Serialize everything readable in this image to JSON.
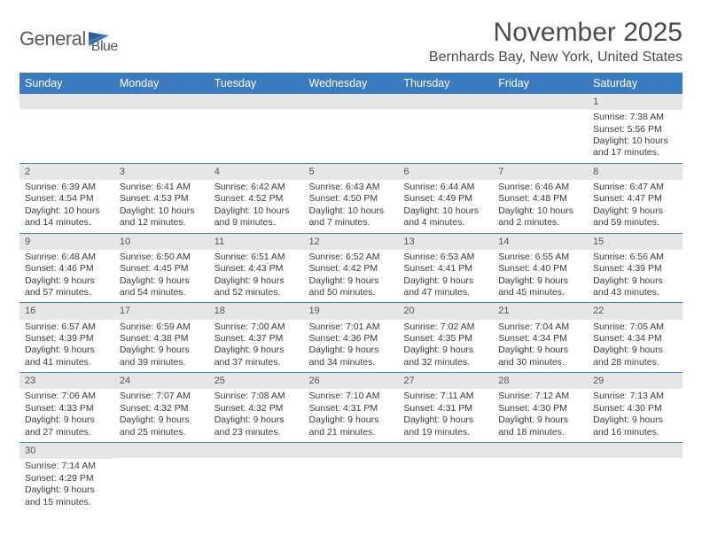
{
  "logo": {
    "text1": "General",
    "text2": "Blue",
    "flag_color": "#3b7bbf"
  },
  "title": "November 2025",
  "subtitle": "Bernhards Bay, New York, United States",
  "header_bg": "#3b7bbf",
  "header_fg": "#ffffff",
  "cell_border": "#3b7bbf",
  "daynum_bg": "#e6e6e6",
  "days": [
    "Sunday",
    "Monday",
    "Tuesday",
    "Wednesday",
    "Thursday",
    "Friday",
    "Saturday"
  ],
  "weeks": [
    [
      {
        "n": "",
        "sunrise": "",
        "sunset": "",
        "daylight": ""
      },
      {
        "n": "",
        "sunrise": "",
        "sunset": "",
        "daylight": ""
      },
      {
        "n": "",
        "sunrise": "",
        "sunset": "",
        "daylight": ""
      },
      {
        "n": "",
        "sunrise": "",
        "sunset": "",
        "daylight": ""
      },
      {
        "n": "",
        "sunrise": "",
        "sunset": "",
        "daylight": ""
      },
      {
        "n": "",
        "sunrise": "",
        "sunset": "",
        "daylight": ""
      },
      {
        "n": "1",
        "sunrise": "Sunrise: 7:38 AM",
        "sunset": "Sunset: 5:56 PM",
        "daylight": "Daylight: 10 hours and 17 minutes."
      }
    ],
    [
      {
        "n": "2",
        "sunrise": "Sunrise: 6:39 AM",
        "sunset": "Sunset: 4:54 PM",
        "daylight": "Daylight: 10 hours and 14 minutes."
      },
      {
        "n": "3",
        "sunrise": "Sunrise: 6:41 AM",
        "sunset": "Sunset: 4:53 PM",
        "daylight": "Daylight: 10 hours and 12 minutes."
      },
      {
        "n": "4",
        "sunrise": "Sunrise: 6:42 AM",
        "sunset": "Sunset: 4:52 PM",
        "daylight": "Daylight: 10 hours and 9 minutes."
      },
      {
        "n": "5",
        "sunrise": "Sunrise: 6:43 AM",
        "sunset": "Sunset: 4:50 PM",
        "daylight": "Daylight: 10 hours and 7 minutes."
      },
      {
        "n": "6",
        "sunrise": "Sunrise: 6:44 AM",
        "sunset": "Sunset: 4:49 PM",
        "daylight": "Daylight: 10 hours and 4 minutes."
      },
      {
        "n": "7",
        "sunrise": "Sunrise: 6:46 AM",
        "sunset": "Sunset: 4:48 PM",
        "daylight": "Daylight: 10 hours and 2 minutes."
      },
      {
        "n": "8",
        "sunrise": "Sunrise: 6:47 AM",
        "sunset": "Sunset: 4:47 PM",
        "daylight": "Daylight: 9 hours and 59 minutes."
      }
    ],
    [
      {
        "n": "9",
        "sunrise": "Sunrise: 6:48 AM",
        "sunset": "Sunset: 4:46 PM",
        "daylight": "Daylight: 9 hours and 57 minutes."
      },
      {
        "n": "10",
        "sunrise": "Sunrise: 6:50 AM",
        "sunset": "Sunset: 4:45 PM",
        "daylight": "Daylight: 9 hours and 54 minutes."
      },
      {
        "n": "11",
        "sunrise": "Sunrise: 6:51 AM",
        "sunset": "Sunset: 4:43 PM",
        "daylight": "Daylight: 9 hours and 52 minutes."
      },
      {
        "n": "12",
        "sunrise": "Sunrise: 6:52 AM",
        "sunset": "Sunset: 4:42 PM",
        "daylight": "Daylight: 9 hours and 50 minutes."
      },
      {
        "n": "13",
        "sunrise": "Sunrise: 6:53 AM",
        "sunset": "Sunset: 4:41 PM",
        "daylight": "Daylight: 9 hours and 47 minutes."
      },
      {
        "n": "14",
        "sunrise": "Sunrise: 6:55 AM",
        "sunset": "Sunset: 4:40 PM",
        "daylight": "Daylight: 9 hours and 45 minutes."
      },
      {
        "n": "15",
        "sunrise": "Sunrise: 6:56 AM",
        "sunset": "Sunset: 4:39 PM",
        "daylight": "Daylight: 9 hours and 43 minutes."
      }
    ],
    [
      {
        "n": "16",
        "sunrise": "Sunrise: 6:57 AM",
        "sunset": "Sunset: 4:39 PM",
        "daylight": "Daylight: 9 hours and 41 minutes."
      },
      {
        "n": "17",
        "sunrise": "Sunrise: 6:59 AM",
        "sunset": "Sunset: 4:38 PM",
        "daylight": "Daylight: 9 hours and 39 minutes."
      },
      {
        "n": "18",
        "sunrise": "Sunrise: 7:00 AM",
        "sunset": "Sunset: 4:37 PM",
        "daylight": "Daylight: 9 hours and 37 minutes."
      },
      {
        "n": "19",
        "sunrise": "Sunrise: 7:01 AM",
        "sunset": "Sunset: 4:36 PM",
        "daylight": "Daylight: 9 hours and 34 minutes."
      },
      {
        "n": "20",
        "sunrise": "Sunrise: 7:02 AM",
        "sunset": "Sunset: 4:35 PM",
        "daylight": "Daylight: 9 hours and 32 minutes."
      },
      {
        "n": "21",
        "sunrise": "Sunrise: 7:04 AM",
        "sunset": "Sunset: 4:34 PM",
        "daylight": "Daylight: 9 hours and 30 minutes."
      },
      {
        "n": "22",
        "sunrise": "Sunrise: 7:05 AM",
        "sunset": "Sunset: 4:34 PM",
        "daylight": "Daylight: 9 hours and 28 minutes."
      }
    ],
    [
      {
        "n": "23",
        "sunrise": "Sunrise: 7:06 AM",
        "sunset": "Sunset: 4:33 PM",
        "daylight": "Daylight: 9 hours and 27 minutes."
      },
      {
        "n": "24",
        "sunrise": "Sunrise: 7:07 AM",
        "sunset": "Sunset: 4:32 PM",
        "daylight": "Daylight: 9 hours and 25 minutes."
      },
      {
        "n": "25",
        "sunrise": "Sunrise: 7:08 AM",
        "sunset": "Sunset: 4:32 PM",
        "daylight": "Daylight: 9 hours and 23 minutes."
      },
      {
        "n": "26",
        "sunrise": "Sunrise: 7:10 AM",
        "sunset": "Sunset: 4:31 PM",
        "daylight": "Daylight: 9 hours and 21 minutes."
      },
      {
        "n": "27",
        "sunrise": "Sunrise: 7:11 AM",
        "sunset": "Sunset: 4:31 PM",
        "daylight": "Daylight: 9 hours and 19 minutes."
      },
      {
        "n": "28",
        "sunrise": "Sunrise: 7:12 AM",
        "sunset": "Sunset: 4:30 PM",
        "daylight": "Daylight: 9 hours and 18 minutes."
      },
      {
        "n": "29",
        "sunrise": "Sunrise: 7:13 AM",
        "sunset": "Sunset: 4:30 PM",
        "daylight": "Daylight: 9 hours and 16 minutes."
      }
    ],
    [
      {
        "n": "30",
        "sunrise": "Sunrise: 7:14 AM",
        "sunset": "Sunset: 4:29 PM",
        "daylight": "Daylight: 9 hours and 15 minutes."
      },
      {
        "n": "",
        "sunrise": "",
        "sunset": "",
        "daylight": ""
      },
      {
        "n": "",
        "sunrise": "",
        "sunset": "",
        "daylight": ""
      },
      {
        "n": "",
        "sunrise": "",
        "sunset": "",
        "daylight": ""
      },
      {
        "n": "",
        "sunrise": "",
        "sunset": "",
        "daylight": ""
      },
      {
        "n": "",
        "sunrise": "",
        "sunset": "",
        "daylight": ""
      },
      {
        "n": "",
        "sunrise": "",
        "sunset": "",
        "daylight": ""
      }
    ]
  ]
}
